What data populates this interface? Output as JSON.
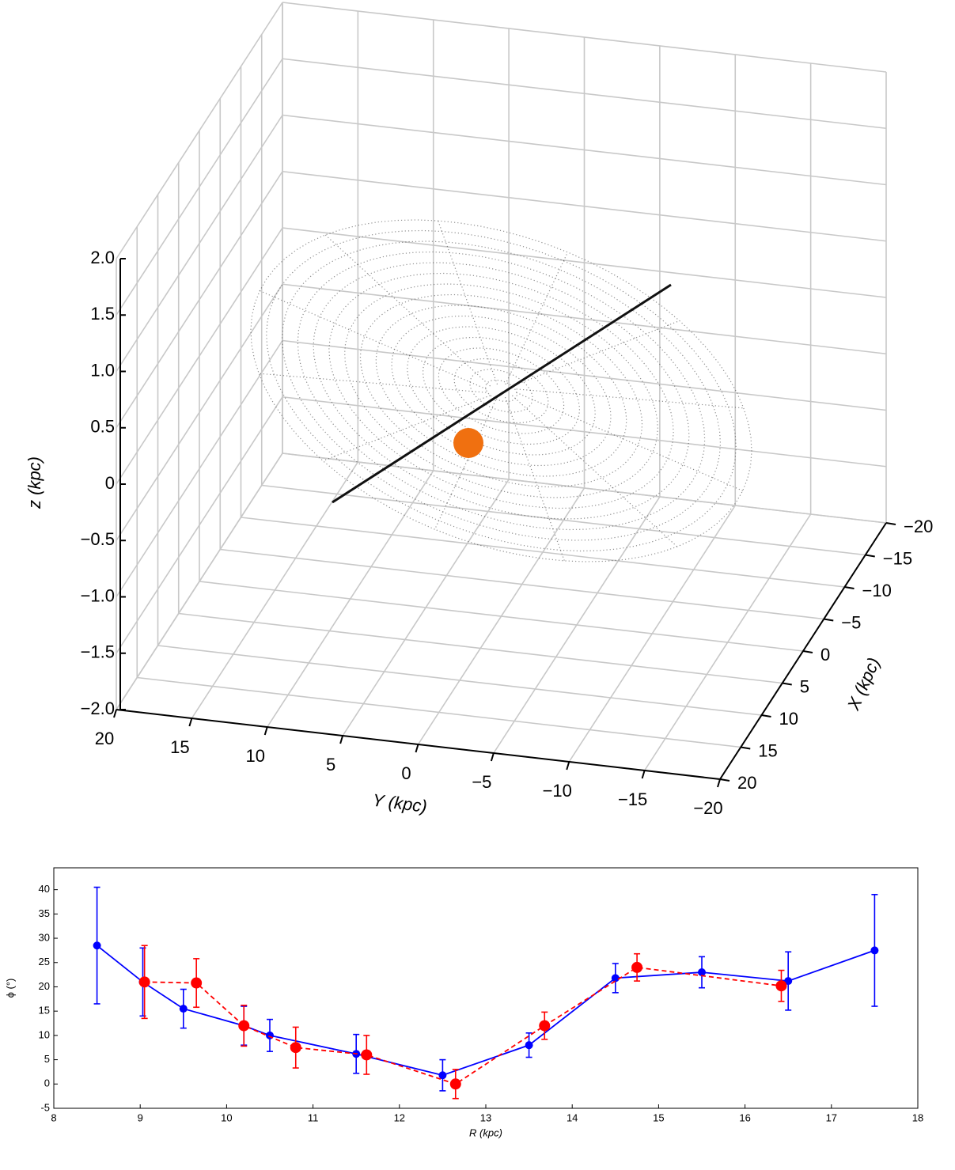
{
  "chart_data": [
    {
      "type": "scatter3d",
      "zlabel": "z (kpc)",
      "ylabel": "Y (kpc)",
      "xlabel": "X (kpc)",
      "xlim": [
        20,
        -20
      ],
      "ylim": [
        20,
        -20
      ],
      "zlim": [
        -2,
        2
      ],
      "zticks": [
        {
          "value": -2,
          "label": "−2.0"
        },
        {
          "value": -1.5,
          "label": "−1.5"
        },
        {
          "value": -1,
          "label": "−1.0"
        },
        {
          "value": -0.5,
          "label": "−0.5"
        },
        0,
        0.5,
        {
          "value": 1,
          "label": "1.0"
        },
        1.5,
        {
          "value": 2,
          "label": "2.0"
        }
      ],
      "yticks": [
        20,
        15,
        10,
        5,
        0,
        {
          "value": -5,
          "label": "−5"
        },
        {
          "value": -10,
          "label": "−10"
        },
        {
          "value": -15,
          "label": "−15"
        },
        {
          "value": -20,
          "label": "−20"
        }
      ],
      "xticks": [
        {
          "value": -20,
          "label": "−20"
        },
        {
          "value": -15,
          "label": "−15"
        },
        {
          "value": -10,
          "label": "−10"
        },
        {
          "value": -5,
          "label": "−5"
        },
        0,
        5,
        10,
        15,
        20
      ],
      "grid": true
    },
    {
      "type": "errorbar",
      "xlabel": "R (kpc)",
      "ylabel": "ϕ (°)",
      "xlim": [
        8,
        18
      ],
      "ylim": [
        -5,
        44.5
      ],
      "xticks": [
        8,
        9,
        10,
        11,
        12,
        13,
        14,
        15,
        16,
        17,
        18
      ],
      "yticks": [
        -5,
        0,
        5,
        10,
        15,
        20,
        25,
        30,
        35,
        40
      ],
      "series": [
        {
          "color": "#0000ff",
          "linestyle": "solid",
          "marker_size": 5,
          "x": [
            8.5,
            9.03,
            9.5,
            10.2,
            10.5,
            11.5,
            12.5,
            13.5,
            14.5,
            15.5,
            16.5,
            17.5
          ],
          "values": [
            28.5,
            21,
            15.5,
            12,
            10,
            6.2,
            1.8,
            8,
            21.8,
            23,
            21.2,
            27.5
          ],
          "errors": [
            12,
            7,
            4,
            4,
            3.3,
            4,
            3.2,
            2.5,
            3,
            3.2,
            6,
            11.5
          ]
        },
        {
          "color": "#ff0000",
          "linestyle": "dashed",
          "marker_size": 7,
          "x": [
            9.05,
            9.65,
            10.2,
            10.8,
            11.62,
            12.65,
            13.68,
            14.75,
            16.42
          ],
          "values": [
            21,
            20.8,
            12,
            7.5,
            6,
            0,
            12,
            24,
            20.2
          ],
          "errors": [
            7.5,
            5,
            4.2,
            4.2,
            4,
            3,
            2.8,
            2.8,
            3.2
          ]
        }
      ]
    }
  ]
}
